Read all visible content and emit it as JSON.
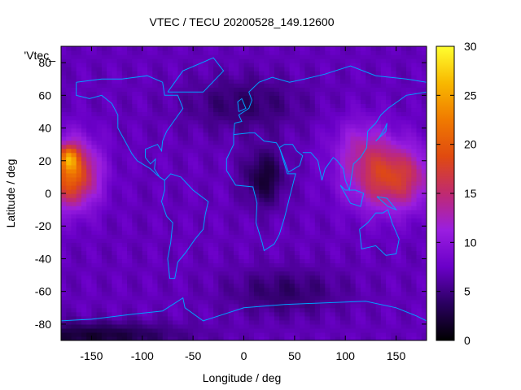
{
  "chart_data": {
    "type": "heatmap",
    "title": "VTEC / TECU 20200528_149.12600",
    "xlabel": "Longitude / deg",
    "ylabel": "Latitude / deg",
    "series_label": "'Vtec_",
    "xlim": [
      -180,
      180
    ],
    "ylim": [
      -90,
      90
    ],
    "x_ticks": [
      -150,
      -100,
      -50,
      0,
      50,
      100,
      150
    ],
    "y_ticks": [
      -80,
      -60,
      -40,
      -20,
      0,
      20,
      40,
      60,
      80
    ],
    "colorbar": {
      "range": [
        0,
        30
      ],
      "ticks": [
        0,
        5,
        10,
        15,
        20,
        25,
        30
      ],
      "palette": [
        "#000000",
        "#2a0060",
        "#6a00c8",
        "#9a1ee0",
        "#c02a70",
        "#e04a10",
        "#f07a00",
        "#f8b800",
        "#ffff30"
      ]
    },
    "features": [
      {
        "lon": -170,
        "lat": 12,
        "sigma_lon": 18,
        "sigma_lat": 14,
        "value": 14
      },
      {
        "lon": -172,
        "lat": 22,
        "sigma_lon": 6,
        "sigma_lat": 5,
        "value": 8
      },
      {
        "lon": 145,
        "lat": 10,
        "sigma_lon": 28,
        "sigma_lat": 14,
        "value": 11
      },
      {
        "lon": 115,
        "lat": 30,
        "sigma_lon": 20,
        "sigma_lat": 12,
        "value": 4
      },
      {
        "lon": 20,
        "lat": 10,
        "sigma_lon": 14,
        "sigma_lat": 12,
        "value": -5
      },
      {
        "lon": 0,
        "lat": 55,
        "sigma_lon": 40,
        "sigma_lat": 12,
        "value": -3
      },
      {
        "lon": 40,
        "lat": -60,
        "sigma_lon": 40,
        "sigma_lat": 10,
        "value": -3
      },
      {
        "lon": -150,
        "lat": -87,
        "sigma_lon": 60,
        "sigma_lat": 6,
        "value": -5
      }
    ],
    "base_value": 7,
    "grid": false
  },
  "colors": {
    "coastline": "#00a0ff",
    "axis": "#000000"
  }
}
